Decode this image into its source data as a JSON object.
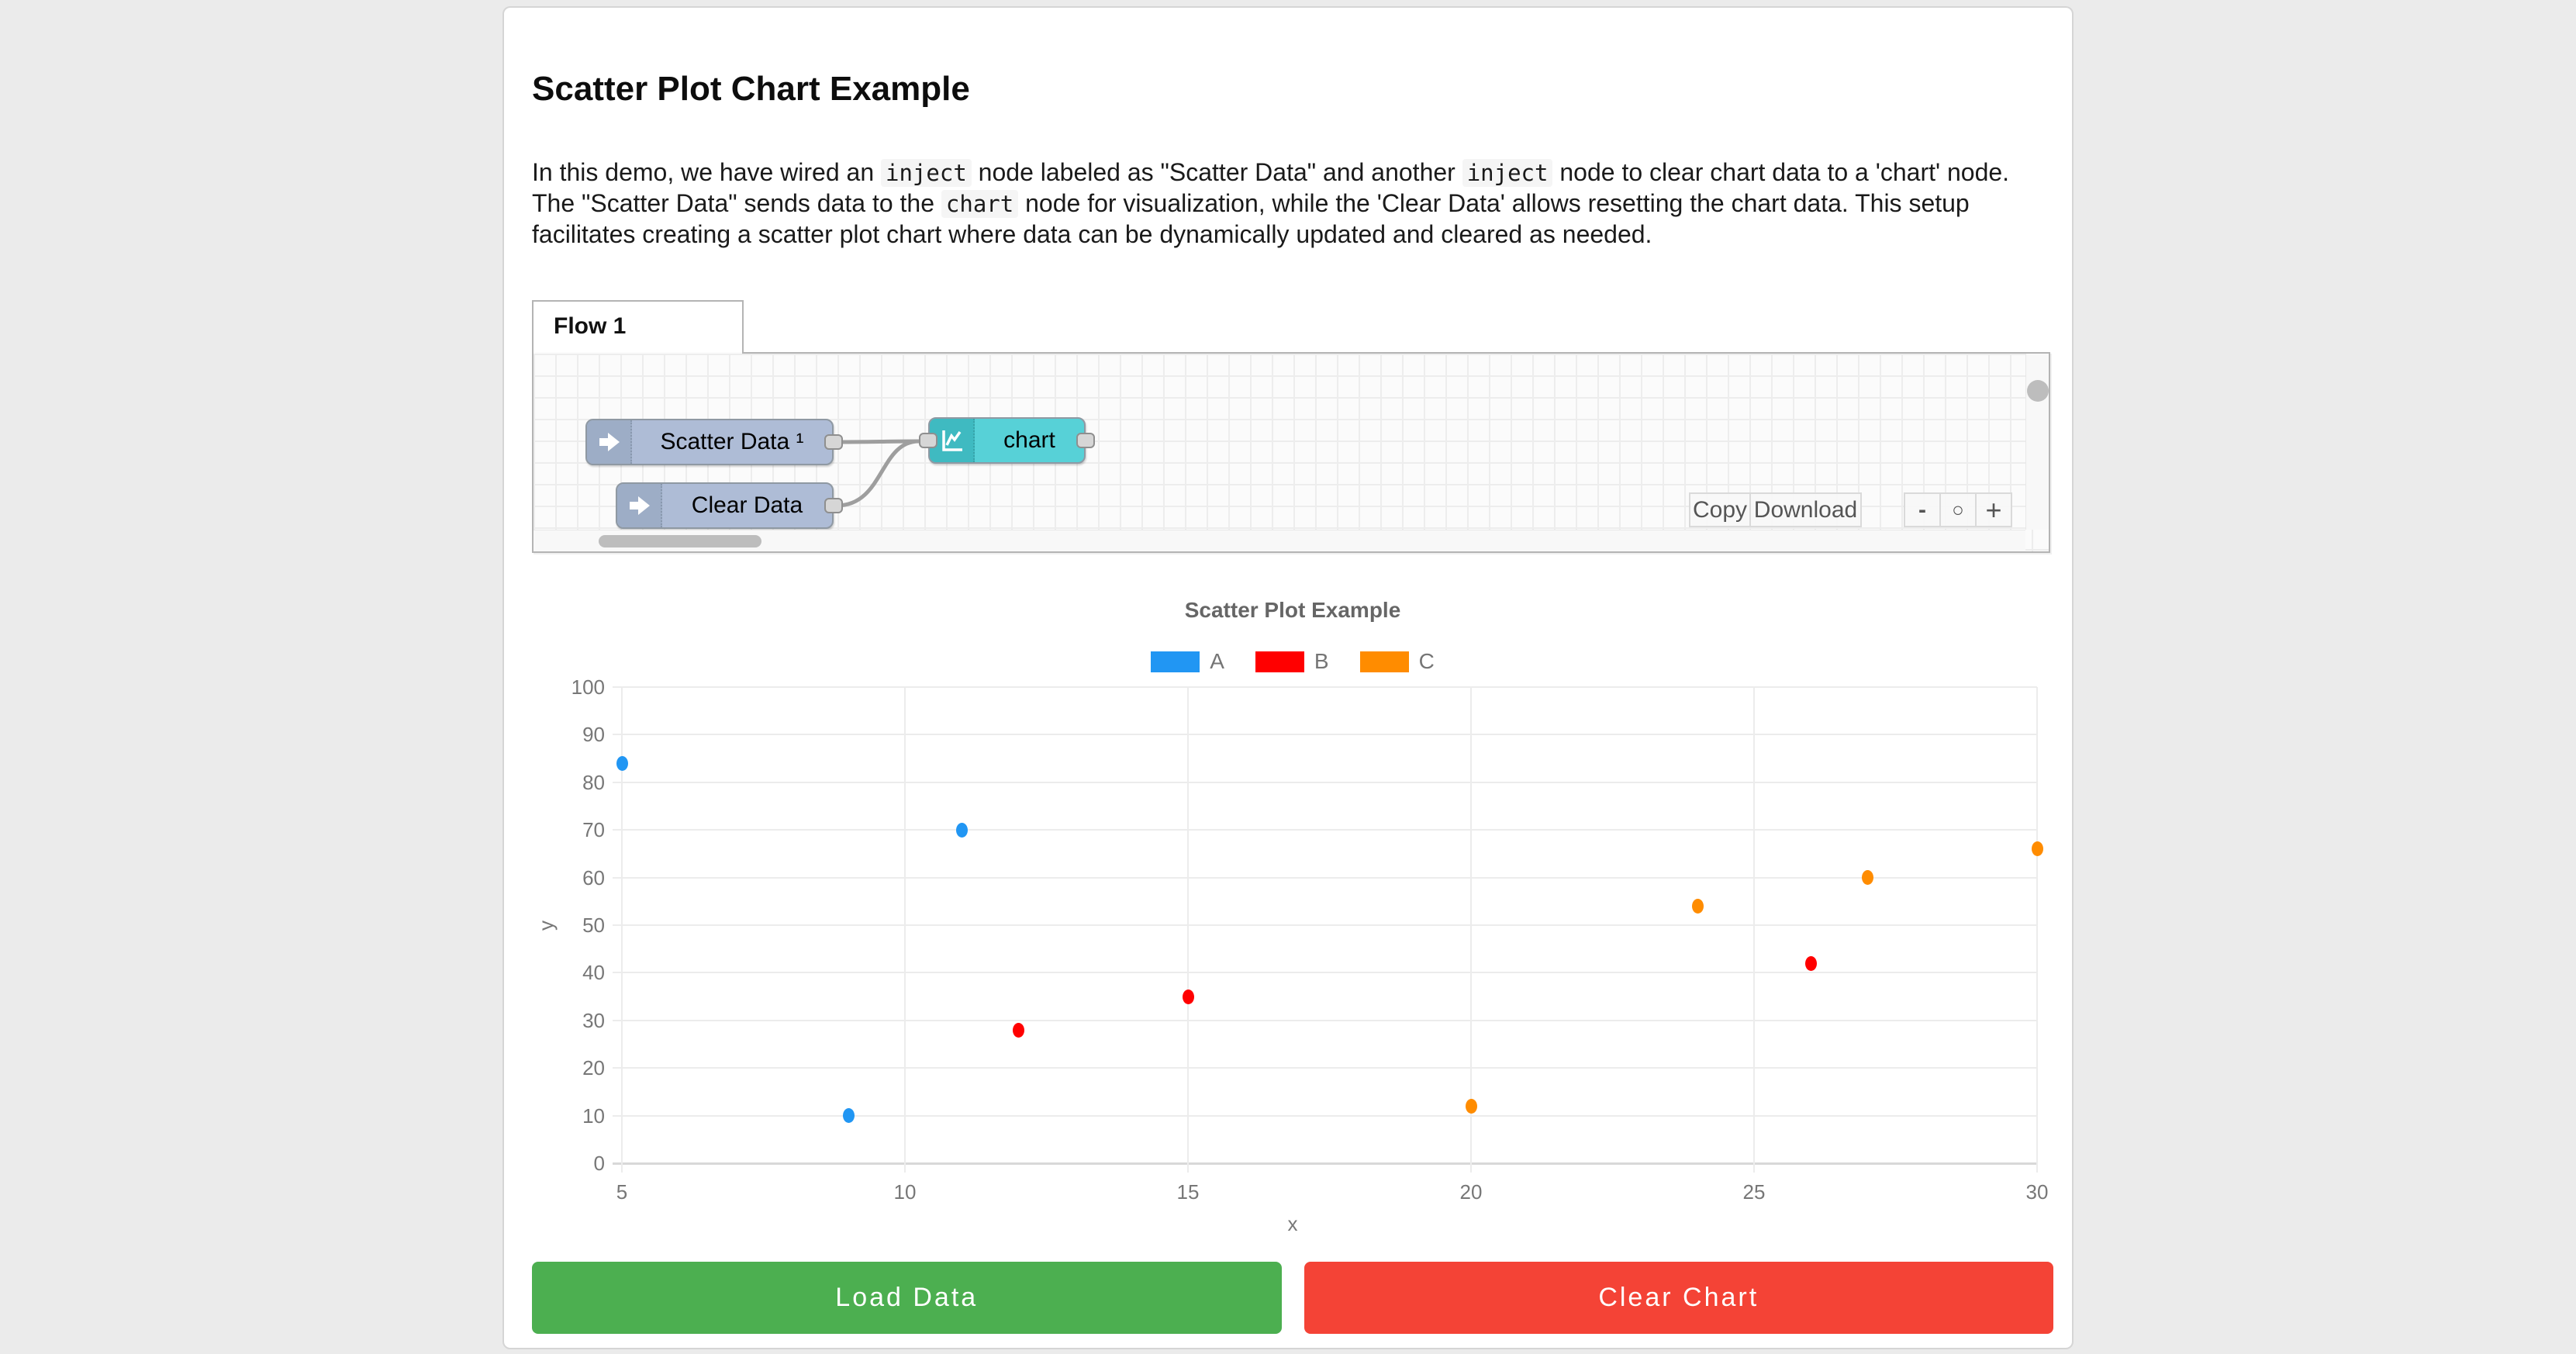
{
  "page": {
    "heading": "Scatter Plot Chart Example"
  },
  "description": {
    "segments": [
      {
        "text": "In this demo, we have wired an ",
        "code": false
      },
      {
        "text": "inject",
        "code": true
      },
      {
        "text": " node labeled as \"Scatter Data\" and another ",
        "code": false
      },
      {
        "text": "inject",
        "code": true
      },
      {
        "text": " node to clear chart data to a 'chart' node. The \"Scatter Data\" sends data to the ",
        "code": false
      },
      {
        "text": "chart",
        "code": true
      },
      {
        "text": " node for visualization, while the 'Clear Data' allows resetting the chart data. This setup facilitates creating a scatter plot chart where data can be dynamically updated and cleared as needed.",
        "code": false
      }
    ]
  },
  "flow": {
    "tab_label": "Flow 1",
    "nodes": [
      {
        "label": "Scatter Data ¹",
        "type": "inject"
      },
      {
        "label": "Clear Data",
        "type": "inject"
      },
      {
        "label": "chart",
        "type": "chart"
      }
    ],
    "toolbar": {
      "copy_label": "Copy",
      "download_label": "Download",
      "zoom_out_label": "-",
      "zoom_reset_label": "○",
      "zoom_in_label": "+"
    },
    "node_colors": {
      "inject_body": "#aebcd6",
      "inject_icon_area": "#9dadc6",
      "chart_body": "#57d1d7",
      "chart_icon_area": "#3fbac1"
    }
  },
  "chart_data": {
    "type": "scatter",
    "title": "Scatter Plot Example",
    "xlabel": "x",
    "ylabel": "y",
    "xlim": [
      5,
      30
    ],
    "ylim": [
      0,
      100
    ],
    "x_ticks": [
      5,
      10,
      15,
      20,
      25,
      30
    ],
    "y_ticks": [
      0,
      10,
      20,
      30,
      40,
      50,
      60,
      70,
      80,
      90,
      100
    ],
    "grid": true,
    "legend_position": "top",
    "series": [
      {
        "name": "A",
        "color": "#2196F3",
        "points": [
          [
            5,
            84
          ],
          [
            11,
            70
          ],
          [
            9,
            10
          ]
        ]
      },
      {
        "name": "B",
        "color": "#FF0000",
        "points": [
          [
            12,
            28
          ],
          [
            15,
            35
          ],
          [
            26,
            42
          ]
        ]
      },
      {
        "name": "C",
        "color": "#FF8C00",
        "points": [
          [
            20,
            12
          ],
          [
            24,
            54
          ],
          [
            27,
            60
          ],
          [
            30,
            66
          ]
        ]
      }
    ]
  },
  "actions": {
    "load_label": "Load Data",
    "load_color": "#4CAF50",
    "clear_label": "Clear Chart",
    "clear_color": "#F44336"
  }
}
